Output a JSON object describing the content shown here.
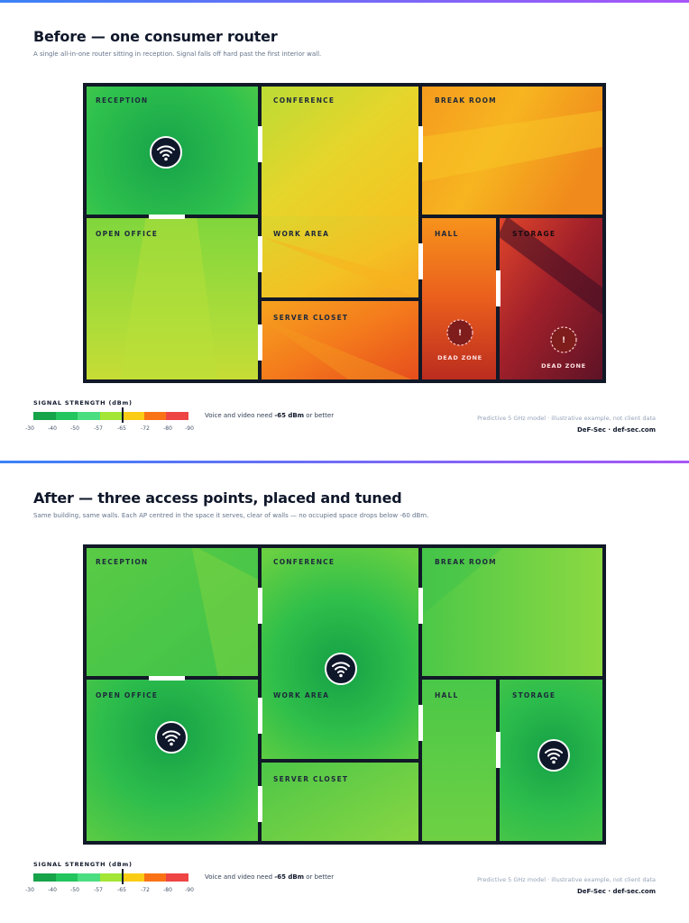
{
  "colors": {
    "accent_start": "#3b82f6",
    "accent_end": "#a855f7",
    "wall": "#111827",
    "door": "#ffffff",
    "ap_fill": "#0f172a",
    "dead_zone": "#7f1d1d"
  },
  "panels": [
    {
      "id": "before",
      "title": "Before — one consumer router",
      "subtitle": "A single all-in-one router sitting in reception. Signal falls off hard past the first interior wall.",
      "rooms": [
        {
          "key": "reception",
          "label": "RECEPTION"
        },
        {
          "key": "conference",
          "label": "CONFERENCE"
        },
        {
          "key": "break_room",
          "label": "BREAK ROOM"
        },
        {
          "key": "open_office",
          "label": "OPEN OFFICE"
        },
        {
          "key": "work_area",
          "label": "WORK AREA"
        },
        {
          "key": "hall",
          "label": "HALL"
        },
        {
          "key": "storage",
          "label": "STORAGE"
        },
        {
          "key": "server_closet",
          "label": "SERVER CLOSET"
        }
      ],
      "access_points": [
        {
          "room": "reception",
          "icon": "wifi-icon"
        }
      ],
      "dead_zones": [
        {
          "room": "hall",
          "label": "DEAD ZONE",
          "icon": "warning-icon"
        },
        {
          "room": "storage",
          "label": "DEAD ZONE",
          "icon": "warning-icon"
        }
      ]
    },
    {
      "id": "after",
      "title": "After — three access points, placed and tuned",
      "subtitle": "Same building, same walls. Each AP centred in the space it serves, clear of walls — no occupied space drops below -60 dBm.",
      "rooms": [
        {
          "key": "reception",
          "label": "RECEPTION"
        },
        {
          "key": "conference",
          "label": "CONFERENCE"
        },
        {
          "key": "break_room",
          "label": "BREAK ROOM"
        },
        {
          "key": "open_office",
          "label": "OPEN OFFICE"
        },
        {
          "key": "work_area",
          "label": "WORK AREA"
        },
        {
          "key": "hall",
          "label": "HALL"
        },
        {
          "key": "storage",
          "label": "STORAGE"
        },
        {
          "key": "server_closet",
          "label": "SERVER CLOSET"
        }
      ],
      "access_points": [
        {
          "room": "conference",
          "icon": "wifi-icon"
        },
        {
          "room": "open_office",
          "icon": "wifi-icon"
        },
        {
          "room": "storage",
          "icon": "wifi-icon"
        }
      ],
      "dead_zones": []
    }
  ],
  "legend": {
    "title": "SIGNAL STRENGTH (dBm)",
    "ticks": [
      "-30",
      "-40",
      "-50",
      "-57",
      "-65",
      "-72",
      "-80",
      "-90"
    ],
    "colors": [
      "#16a34a",
      "#22c55e",
      "#4ade80",
      "#a3e635",
      "#facc15",
      "#f97316",
      "#ef4444",
      "#dc2626"
    ],
    "threshold": "-65",
    "note_prefix": "Voice and video need ",
    "note_strong": "-65 dBm",
    "note_suffix": " or better"
  },
  "footer": {
    "model_note": "Predictive 5 GHz model · illustrative example, not client data",
    "brand": "DeF-Sec · def-sec.com"
  }
}
